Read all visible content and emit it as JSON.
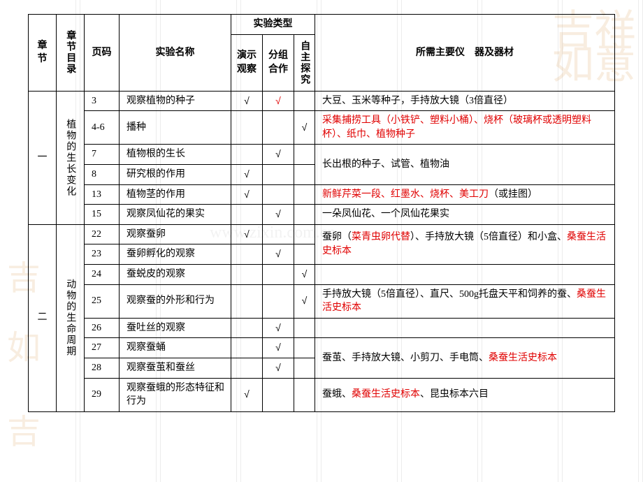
{
  "headers": {
    "chapter": "章节",
    "toc": "章节目录",
    "page": "页码",
    "exp_name": "实验名称",
    "exp_type": "实验类型",
    "type_demo": "演示观察",
    "type_group": "分组合作",
    "type_self": "自主探究",
    "equipment": "所需主要仪　器及器材"
  },
  "sections": [
    {
      "chapter": "一",
      "toc": "植物的生长变化",
      "rows": [
        {
          "page": "3",
          "name": "观察植物的种子",
          "demo": "√",
          "group": "√",
          "self": "",
          "equip": [
            {
              "t": "大豆、玉米等种子，手持放大镜（3倍直径）"
            }
          ],
          "group_red": true,
          "equip_rowspan": 1
        },
        {
          "page": "4-6",
          "name": "播种",
          "demo": "",
          "group": "",
          "self": "√",
          "equip": [
            {
              "t": "采集捕捞工具（小铁铲、塑料小桶）、烧杯（玻璃杯或透明塑料杯）、纸巾、植物种子",
              "red": true
            }
          ],
          "equip_rowspan": 1
        },
        {
          "page": "7",
          "name": "植物根的生长",
          "demo": "",
          "group": "√",
          "self": "",
          "equip": [
            {
              "t": "长出根的种子、试管、植物油"
            }
          ],
          "equip_rowspan": 2
        },
        {
          "page": "8",
          "name": "研究根的作用",
          "demo": "√",
          "group": "",
          "self": ""
        },
        {
          "page": "13",
          "name": "植物茎的作用",
          "demo": "√",
          "group": "",
          "self": "",
          "equip": [
            {
              "t": "新鲜芹菜一段、红墨水、烧杯、美工刀",
              "red": true
            },
            {
              "t": "（或挂图）"
            }
          ],
          "equip_rowspan": 1
        },
        {
          "page": "15",
          "name": "观察凤仙花的果实",
          "demo": "",
          "group": "√",
          "self": "",
          "equip": [
            {
              "t": "一朵凤仙花、一个凤仙花果实"
            }
          ],
          "equip_rowspan": 1
        }
      ]
    },
    {
      "chapter": "二",
      "toc": "动物的生命周期",
      "rows": [
        {
          "page": "22",
          "name": "观察蚕卵",
          "demo": "√",
          "group": "",
          "self": "",
          "equip": [
            {
              "t": "蚕卵（"
            },
            {
              "t": "菜青虫卵代替",
              "red": true
            },
            {
              "t": "）、手持放大镜（5倍直径）和小盒、"
            },
            {
              "t": "桑蚕生活史标本",
              "red": true
            }
          ],
          "equip_rowspan": 2
        },
        {
          "page": "23",
          "name": "蚕卵孵化的观察",
          "demo": "",
          "group": "√",
          "self": ""
        },
        {
          "page": "24",
          "name": "蚕蜕皮的观察",
          "demo": "",
          "group": "",
          "self": "√",
          "equip": [
            {
              "t": ""
            }
          ],
          "equip_rowspan": 1
        },
        {
          "page": "25",
          "name": "观察蚕的外形和行为",
          "demo": "",
          "group": "",
          "self": "√",
          "equip": [
            {
              "t": "手持放大镜（5倍直径）、直尺、500g托盘天平和饲养的蚕、"
            },
            {
              "t": "桑蚕生活史标本",
              "red": true
            }
          ],
          "equip_rowspan": 1
        },
        {
          "page": "26",
          "name": "蚕吐丝的观察",
          "demo": "",
          "group": "√",
          "self": "",
          "equip": [
            {
              "t": ""
            }
          ],
          "equip_rowspan": 1
        },
        {
          "page": "27",
          "name": "观察蚕蛹",
          "demo": "",
          "group": "√",
          "self": "",
          "equip": [
            {
              "t": "蚕茧、手持放大镜、小剪刀、手电筒、"
            },
            {
              "t": "桑蚕生活史标本",
              "red": true
            }
          ],
          "equip_rowspan": 2
        },
        {
          "page": "28",
          "name": "观察蚕茧和蚕丝",
          "demo": "",
          "group": "√",
          "self": ""
        },
        {
          "page": "29",
          "name": "观察蚕蛾的形态特征和行为",
          "demo": "√",
          "group": "",
          "self": "",
          "equip": [
            {
              "t": "蚕蛾、"
            },
            {
              "t": "桑蚕生活史标本",
              "red": true
            },
            {
              "t": "、昆虫标本六目"
            }
          ],
          "equip_rowspan": 1
        }
      ]
    }
  ]
}
